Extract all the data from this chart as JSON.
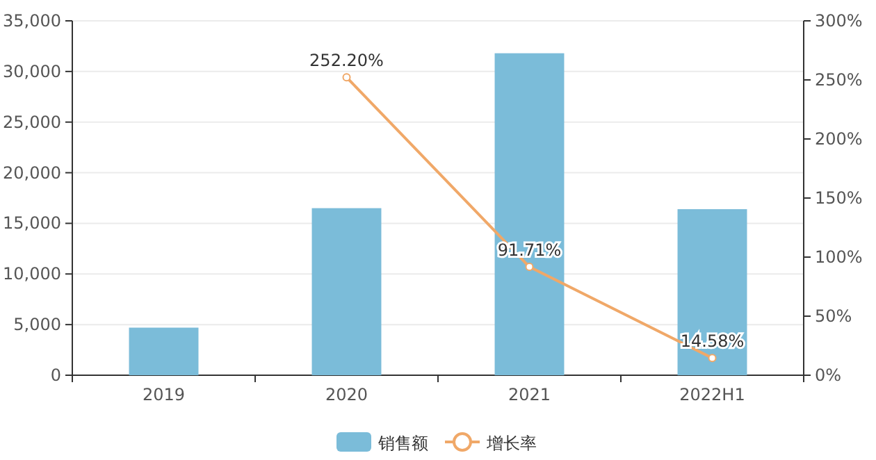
{
  "chart_data": {
    "type": "bar",
    "categories": [
      "2019",
      "2020",
      "2021",
      "2022H1"
    ],
    "series": [
      {
        "name": "销售额",
        "color": "#7bbcd9",
        "values": [
          4700,
          16500,
          31800,
          16400
        ]
      },
      {
        "name": "增长率",
        "type": "line",
        "axis": "y2",
        "color": "#f0a868",
        "marker": "circle",
        "values": [
          null,
          252.2,
          91.71,
          14.58
        ],
        "value_labels": [
          null,
          "252.20%",
          "91.71%",
          "14.58%"
        ]
      }
    ],
    "ylim": [
      0,
      35000
    ],
    "yticks": [
      {
        "value": 0,
        "label": "0"
      },
      {
        "value": 5000,
        "label": "5,000"
      },
      {
        "value": 10000,
        "label": "10,000"
      },
      {
        "value": 15000,
        "label": "15,000"
      },
      {
        "value": 20000,
        "label": "20,000"
      },
      {
        "value": 25000,
        "label": "25,000"
      },
      {
        "value": 30000,
        "label": "30,000"
      },
      {
        "value": 35000,
        "label": "35,000"
      }
    ],
    "y2lim": [
      0,
      300
    ],
    "y2ticks": [
      {
        "value": 0,
        "label": "0%"
      },
      {
        "value": 50,
        "label": "50%"
      },
      {
        "value": 100,
        "label": "100%"
      },
      {
        "value": 150,
        "label": "150%"
      },
      {
        "value": 200,
        "label": "200%"
      },
      {
        "value": 250,
        "label": "250%"
      },
      {
        "value": 300,
        "label": "300%"
      }
    ],
    "grid": "y",
    "legend": "bottom"
  }
}
